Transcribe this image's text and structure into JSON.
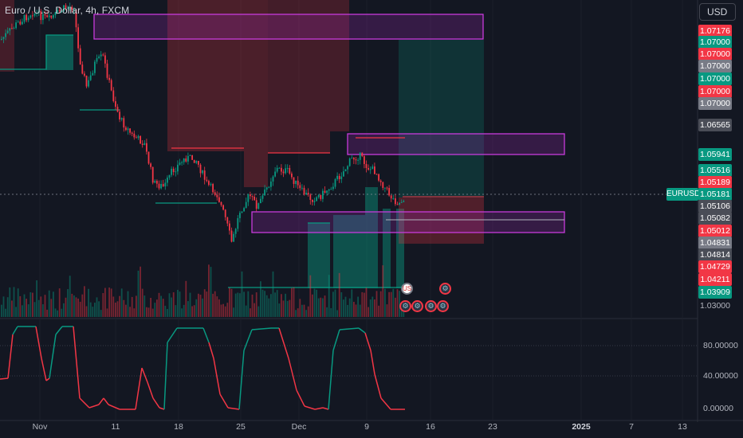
{
  "header": {
    "title": "Euro / U.S. Dollar, 4h, FXCM",
    "currency": "USD"
  },
  "symbol_tag": "EURUSD",
  "price_axis": [
    {
      "label": "1.07176",
      "bg": "#f23645",
      "kind": "tag"
    },
    {
      "label": "1.07000",
      "bg": "#089981",
      "kind": "tag"
    },
    {
      "label": "1.07000",
      "bg": "#f23645",
      "kind": "tag"
    },
    {
      "label": "1.07000",
      "bg": "#787b86",
      "kind": "tag"
    },
    {
      "label": "1.07000",
      "bg": "#089981",
      "kind": "tag"
    },
    {
      "label": "1.07000",
      "bg": "#f23645",
      "kind": "tag"
    },
    {
      "label": "1.07000",
      "bg": "#787b86",
      "kind": "tag"
    },
    {
      "label": "1.06565",
      "bg": "#4a4d57",
      "kind": "tag"
    },
    {
      "label": "1.05941",
      "bg": "#089981",
      "kind": "tag"
    },
    {
      "label": "1.05516",
      "bg": "#089981",
      "kind": "tag"
    },
    {
      "label": "1.05189",
      "bg": "#f23645",
      "kind": "tag"
    },
    {
      "label": "1.05181",
      "bg": "#089981",
      "kind": "tag"
    },
    {
      "label": "1.05106",
      "bg": "#4a4d57",
      "kind": "tag"
    },
    {
      "label": "1.05082",
      "bg": "#4a4d57",
      "kind": "tag"
    },
    {
      "label": "1.05012",
      "bg": "#f23645",
      "kind": "tag"
    },
    {
      "label": "1.04831",
      "bg": "#787b86",
      "kind": "tag"
    },
    {
      "label": "1.04814",
      "bg": "#4a4d57",
      "kind": "tag"
    },
    {
      "label": "1.04729",
      "bg": "#f23645",
      "kind": "tag"
    },
    {
      "label": "1.04211",
      "bg": "#f23645",
      "kind": "tag"
    },
    {
      "label": "1.03909",
      "bg": "#089981",
      "kind": "tag"
    },
    {
      "label": "1.03000",
      "bg": "",
      "kind": "plain"
    }
  ],
  "oscillator_axis": [
    "80.00000",
    "40.00000",
    "0.00000"
  ],
  "time_axis": [
    {
      "label": "Nov",
      "bold": false
    },
    {
      "label": "11",
      "bold": false
    },
    {
      "label": "18",
      "bold": false
    },
    {
      "label": "25",
      "bold": false
    },
    {
      "label": "Dec",
      "bold": false
    },
    {
      "label": "9",
      "bold": false
    },
    {
      "label": "16",
      "bold": false
    },
    {
      "label": "23",
      "bold": false
    },
    {
      "label": "2025",
      "bold": true
    },
    {
      "label": "7",
      "bold": false
    },
    {
      "label": "13",
      "bold": false
    }
  ],
  "events": {
    "us_flag": "US",
    "economic_icon": "⚙"
  },
  "colors": {
    "background": "#131722",
    "bull": "#089981",
    "bear": "#f23645",
    "zone_border": "#b62fd6",
    "grid": "#1e222d"
  }
}
